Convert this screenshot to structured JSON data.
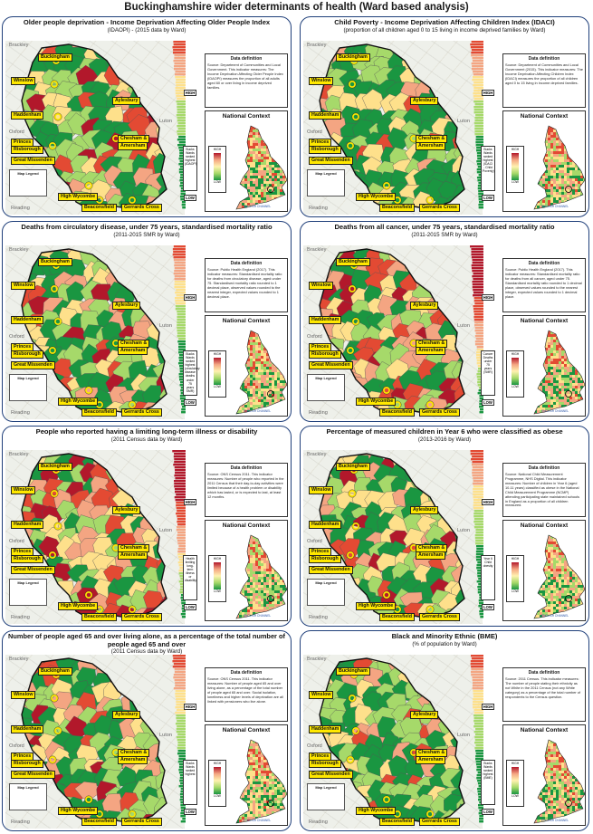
{
  "page": {
    "title": "Buckinghamshire wider determinants of health (Ward based analysis)"
  },
  "colors": {
    "panel_border": "#1f3f7a",
    "dark_red": "#b2182b",
    "red": "#e34a33",
    "orange": "#f4a582",
    "yellow": "#fee08b",
    "light_green": "#a6d96a",
    "green": "#1a9641",
    "label_yellow": "#ffe800",
    "place_ring": "#ffe800"
  },
  "common": {
    "data_definition_label": "Data definition",
    "national_context_label": "National Context",
    "high_label": "HIGH",
    "low_label": "LOW",
    "map_legend_label": "Map Legend",
    "channel_label": "ENGLISH CHANNEL",
    "places": {
      "buckingham": "Buckingham",
      "winslow": "Winslow",
      "aylesbury": "Aylesbury",
      "haddenham": "Haddenham",
      "chesham": "Chesham &",
      "amersham": "Amersham",
      "princes": "Princes",
      "risborough": "Risborough",
      "great_missenden": "Great Missenden",
      "high_wycombe": "High Wycombe",
      "beaconsfield": "Beaconsfield",
      "gerrards_cross": "Gerrards Cross",
      "oxford": "Oxford",
      "reading": "Reading",
      "luton": "Luton",
      "brackley": "Brackley"
    }
  },
  "panels": [
    {
      "title": "Older people deprivation - Income Deprivation Affecting Older People Index",
      "subtitle": "(IDAOPI) - (2015 data by Ward)",
      "definition": "Source: Department of Communities and Local Government. This indicator measures: The Income Deprivation Affecting Older People Index (IDAOPI) measures the proportion of all adults aged 60 or over living in income deprived families.",
      "rank_note": "Bucks Wards ranked highest (IDAOPI)",
      "palette": "mixed_green",
      "bar_profile": "few_red"
    },
    {
      "title": "Child Poverty - Income Deprivation Affecting Children Index (IDACI)",
      "subtitle": "(proportion of all children aged 0 to 15 living in income deprived families by Ward)",
      "definition": "Source: Department of Communities and Local Government (2015). This indicator measures: The Income Deprivation Affecting Children Index (IDACI) measures the proportion of all children aged 0 to 15 living in income deprived families.",
      "rank_note": "Bucks Wards ranked highest (IDACI - Child Poverty)",
      "palette": "mostly_green",
      "bar_profile": "few_red"
    },
    {
      "title": "Deaths from circulatory disease, under 75 years, standardised mortality ratio",
      "subtitle": "(2011-2015 SMR by Ward)",
      "definition": "Source: Public Health England (2017). This indicator measures: Standardised mortality ratio for deaths from circulatory disease, aged under 75. Standardised mortality ratio rounded to 1 decimal place, observed values rounded to the nearest integer, expected values rounded to 1 decimal place.",
      "rank_note": "Bucks Wards ranked highest (circulatory disease deaths under 75 years SMR)",
      "palette": "mixed_green",
      "bar_profile": "few_red"
    },
    {
      "title": "Deaths from all cancer, under 75 years, standardised mortality ratio",
      "subtitle": "(2011-2015 SMR by Ward)",
      "definition": "Source: Public Health England (2017). This indicator measures: Standardised mortality ratio for deaths from all cancer, aged under 75. Standardised mortality ratio rounded to 1 decimal place, observed values rounded to the nearest integer, expected values rounded to 1 decimal place.",
      "rank_note": "Cancer Deaths under 75 years (SMR)",
      "palette": "mixed_red",
      "bar_profile": "many_red"
    },
    {
      "title": "People who reported  having a limiting long-term illness or disability",
      "subtitle": "(2011 Census data by Ward)",
      "definition": "Source: ONS Census 2011. This indicator measures: Number of people who reported in the 2011 Census that their day-to-day activities were limited because of a health problem or disability which has lasted, or is expected to last, at least 12 months.",
      "rank_note": "Health limiting long-term illness or disability",
      "palette": "mixed_red",
      "bar_profile": "many_red"
    },
    {
      "title": "Percentage of measured children in Year 6 who were classified as obese",
      "subtitle": "(2013-2016 by Ward)",
      "definition": "Source: National Child Measurement Programme, NHS Digital. This indicator measures: Number of children in Year 6 (aged 10-11 years) classified as obese in the National Child Measurement Programme (NCMP) attending participating state maintained schools in England as a proportion of all children measured.",
      "rank_note": "Year 6 Child obesity",
      "palette": "mixed_green",
      "bar_profile": "few_red"
    },
    {
      "title": "Number of people aged 65 and over living alone, as a percentage of the total number of people aged 65 and over",
      "subtitle": "(2011 Census data by Ward)",
      "definition": "Source: ONS Census 2011. This indicator measures: Number of people aged 65 and over living alone, as a percentage of the total number of people aged 65 and over. Social isolation, loneliness and higher levels of deprivation are all linked with pensioners who live alone.",
      "rank_note": "Bucks Wards ranked highest",
      "palette": "mixed_green",
      "bar_profile": "few_red"
    },
    {
      "title": "Black and Minority Ethnic (BME)",
      "subtitle": "(% of population by Ward)",
      "definition": "Source: 2011 Census. This indicator measures: The number of people stating their ethnicity as not White in the 2011 Census (not any White category) as a percentage of the total number of respondents to the Census question.",
      "rank_note": "Bucks Wards ranked highest (BME)",
      "palette": "mostly_green",
      "bar_profile": "few_red"
    }
  ]
}
